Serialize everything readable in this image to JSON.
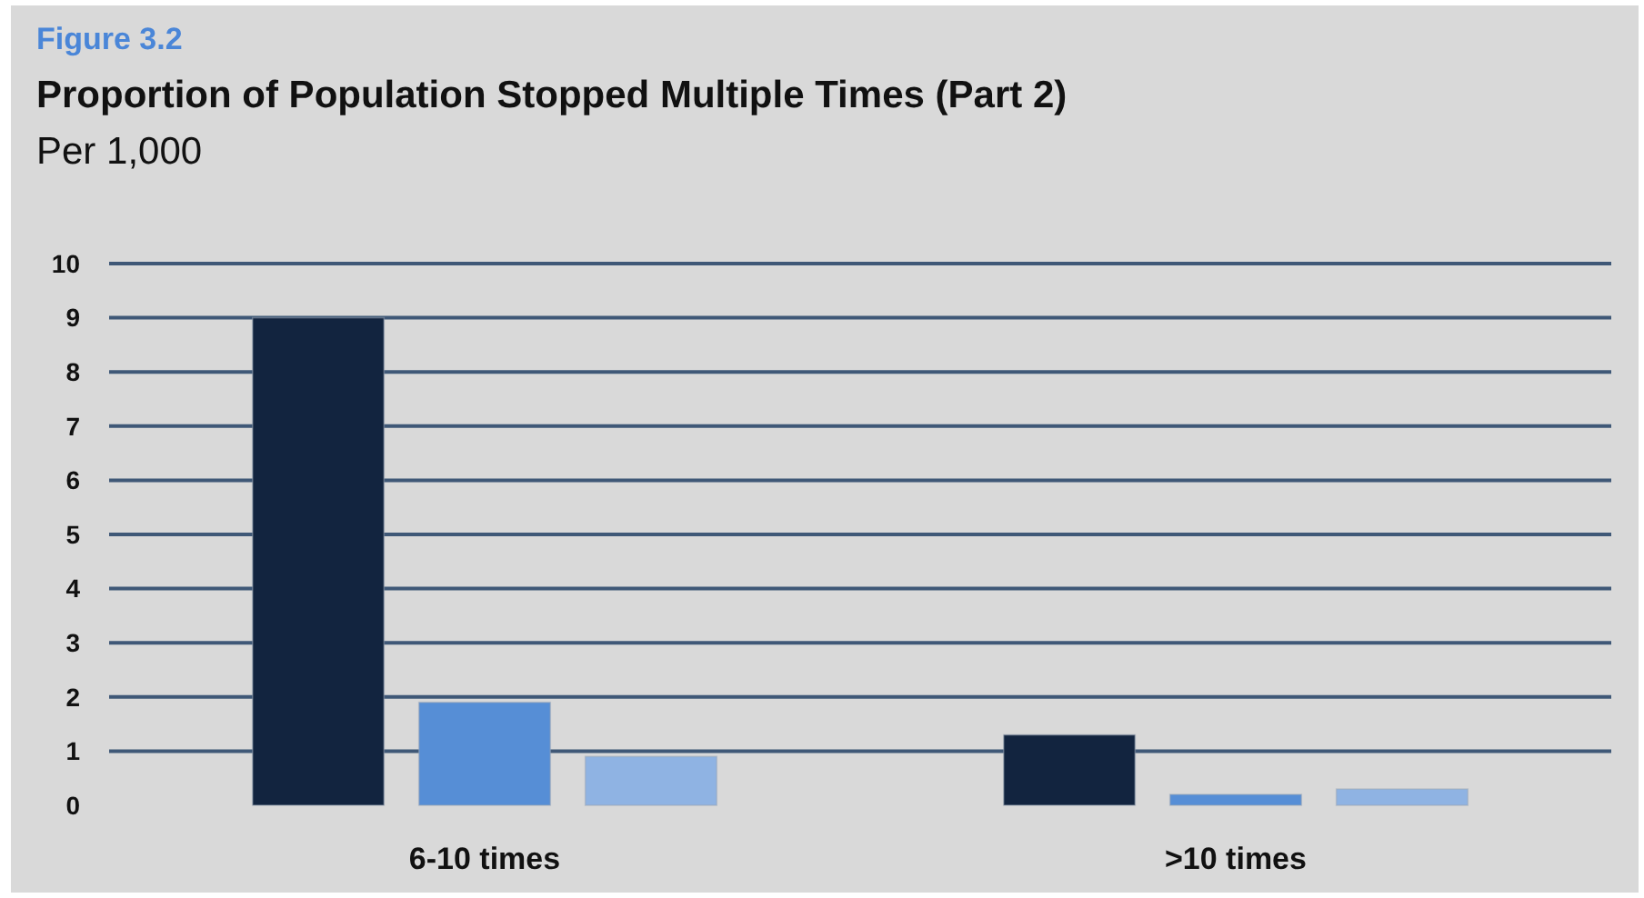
{
  "chart_data": {
    "type": "bar",
    "annotations": [
      "Figure 3.2"
    ],
    "title": "Proportion of Population Stopped Multiple Times (Part 2)",
    "subtitle": "Per 1,000",
    "categories": [
      "6-10 times",
      ">10 times"
    ],
    "series": [
      {
        "color": "#12243f",
        "values": [
          9,
          1.3
        ]
      },
      {
        "color": "#568ed6",
        "values": [
          1.9,
          0.2
        ]
      },
      {
        "color": "#8fb3e3",
        "values": [
          0.9,
          0.3
        ]
      }
    ],
    "ylim": [
      0,
      10
    ],
    "yticks": [
      0,
      1,
      2,
      3,
      4,
      5,
      6,
      7,
      8,
      9,
      10
    ],
    "grid": "y"
  }
}
